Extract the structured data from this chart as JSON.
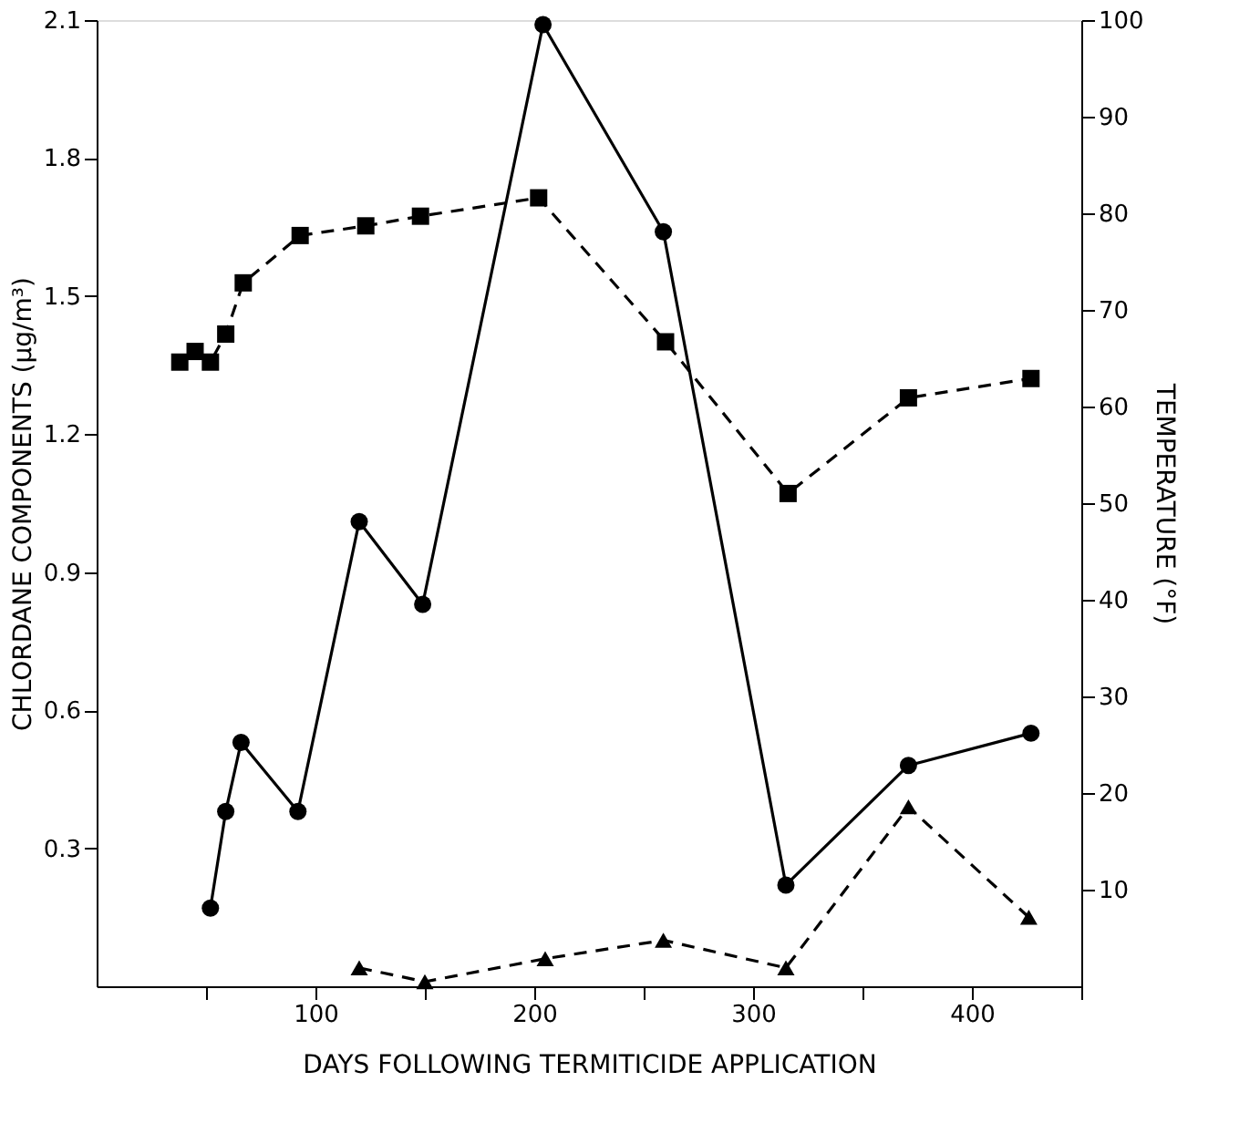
{
  "chart_data": {
    "type": "line",
    "xlabel": "DAYS FOLLOWING TERMITICIDE APPLICATION",
    "ylabel": "CHLORDANE COMPONENTS (µg/m³)",
    "y2label": "TEMPERATURE (°F)",
    "xlim": [
      0,
      450
    ],
    "xticks": [
      {
        "value": 50,
        "label": null
      },
      100,
      {
        "value": 150,
        "label": null
      },
      200,
      {
        "value": 250,
        "label": null
      },
      300,
      {
        "value": 350,
        "label": null
      },
      400,
      {
        "value": 450,
        "label": null
      }
    ],
    "ylim": [
      0,
      2.1
    ],
    "yticks": [
      0.3,
      0.6,
      0.9,
      1.2,
      1.5,
      1.8,
      2.1
    ],
    "y2lim": [
      0,
      100
    ],
    "y2ticks": [
      10,
      20,
      30,
      40,
      50,
      60,
      70,
      80,
      90,
      100
    ],
    "grid": false,
    "series": [
      {
        "color": "#000000",
        "marker": "circle",
        "line_style": "solid",
        "x": [
          52,
          59,
          66,
          92,
          120,
          149,
          204,
          259,
          315,
          371,
          427
        ],
        "values": [
          0.17,
          0.38,
          0.53,
          0.38,
          1.01,
          0.83,
          2.09,
          1.64,
          0.22,
          0.48,
          0.55
        ]
      },
      {
        "color": "#000000",
        "marker": "square",
        "line_style": "dashed",
        "axis": "y2",
        "x": [
          38,
          45,
          52,
          59,
          67,
          93,
          123,
          148,
          202,
          260,
          316,
          371,
          427
        ],
        "values": [
          64.6,
          65.7,
          64.6,
          67.5,
          72.8,
          77.7,
          78.7,
          79.7,
          81.6,
          66.7,
          51,
          60.9,
          62.9
        ]
      },
      {
        "color": "#000000",
        "marker": "triangle",
        "line_style": "dashed",
        "x": [
          120,
          150,
          205,
          259,
          315,
          371,
          426
        ],
        "values": [
          0.04,
          0.01,
          0.06,
          0.1,
          0.04,
          0.39,
          0.15
        ]
      }
    ]
  }
}
